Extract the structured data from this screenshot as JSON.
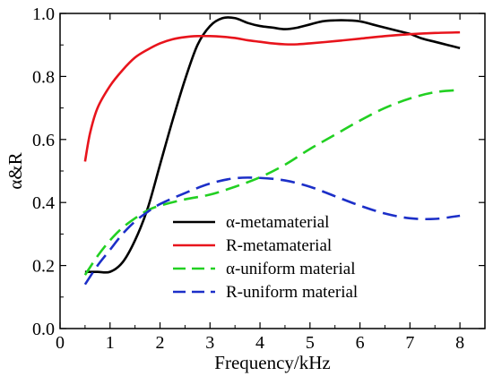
{
  "chart_data": {
    "type": "line",
    "xlabel": "Frequency/kHz",
    "ylabel": "α&R",
    "xlim": [
      0,
      8.5
    ],
    "ylim": [
      0,
      1.0
    ],
    "x_ticks": [
      0,
      1,
      2,
      3,
      4,
      5,
      6,
      7,
      8
    ],
    "x_tick_labels": [
      "0",
      "1",
      "2",
      "3",
      "4",
      "5",
      "6",
      "7",
      "8"
    ],
    "y_ticks": [
      0,
      0.2,
      0.4,
      0.6,
      0.8,
      1.0
    ],
    "y_tick_labels": [
      "0.0",
      "0.2",
      "0.4",
      "0.6",
      "0.8",
      "1.0"
    ],
    "legend_position": "center-bottom",
    "series": [
      {
        "name": "α-metamaterial",
        "color": "#000000",
        "dash": "solid",
        "x": [
          0.5,
          0.75,
          1.0,
          1.25,
          1.5,
          1.75,
          2.0,
          2.25,
          2.5,
          2.75,
          3.0,
          3.25,
          3.5,
          3.75,
          4.0,
          4.25,
          4.5,
          4.75,
          5.0,
          5.25,
          5.5,
          5.75,
          6.0,
          6.25,
          6.5,
          6.75,
          7.0,
          7.25,
          7.5,
          7.75,
          8.0
        ],
        "y": [
          0.18,
          0.18,
          0.18,
          0.21,
          0.28,
          0.38,
          0.52,
          0.66,
          0.79,
          0.9,
          0.96,
          0.985,
          0.985,
          0.97,
          0.96,
          0.955,
          0.95,
          0.955,
          0.965,
          0.975,
          0.978,
          0.978,
          0.975,
          0.965,
          0.955,
          0.945,
          0.935,
          0.92,
          0.91,
          0.9,
          0.89
        ]
      },
      {
        "name": "R-metamaterial",
        "color": "#e8141c",
        "dash": "solid",
        "x": [
          0.5,
          0.6,
          0.75,
          1.0,
          1.25,
          1.5,
          1.75,
          2.0,
          2.25,
          2.5,
          2.75,
          3.0,
          3.25,
          3.5,
          3.75,
          4.0,
          4.25,
          4.5,
          4.75,
          5.0,
          5.5,
          6.0,
          6.5,
          7.0,
          7.5,
          8.0
        ],
        "y": [
          0.53,
          0.62,
          0.7,
          0.77,
          0.82,
          0.86,
          0.885,
          0.905,
          0.918,
          0.925,
          0.928,
          0.928,
          0.926,
          0.922,
          0.915,
          0.91,
          0.905,
          0.902,
          0.902,
          0.905,
          0.912,
          0.92,
          0.928,
          0.934,
          0.938,
          0.94
        ]
      },
      {
        "name": "α-uniform material",
        "color": "#22d022",
        "dash": "dash",
        "x": [
          0.5,
          0.75,
          1.0,
          1.25,
          1.5,
          1.75,
          2.0,
          2.5,
          3.0,
          3.5,
          4.0,
          4.5,
          5.0,
          5.5,
          6.0,
          6.5,
          7.0,
          7.5,
          8.0
        ],
        "y": [
          0.17,
          0.23,
          0.28,
          0.32,
          0.35,
          0.375,
          0.39,
          0.41,
          0.425,
          0.45,
          0.48,
          0.52,
          0.57,
          0.615,
          0.66,
          0.7,
          0.73,
          0.75,
          0.757
        ]
      },
      {
        "name": "R-uniform material",
        "color": "#1c2fc8",
        "dash": "dash",
        "x": [
          0.5,
          0.75,
          1.0,
          1.25,
          1.5,
          1.75,
          2.0,
          2.5,
          3.0,
          3.5,
          4.0,
          4.5,
          5.0,
          5.5,
          6.0,
          6.5,
          7.0,
          7.5,
          8.0
        ],
        "y": [
          0.14,
          0.2,
          0.25,
          0.3,
          0.34,
          0.37,
          0.395,
          0.43,
          0.46,
          0.477,
          0.478,
          0.47,
          0.45,
          0.42,
          0.39,
          0.365,
          0.35,
          0.348,
          0.358
        ]
      }
    ]
  }
}
